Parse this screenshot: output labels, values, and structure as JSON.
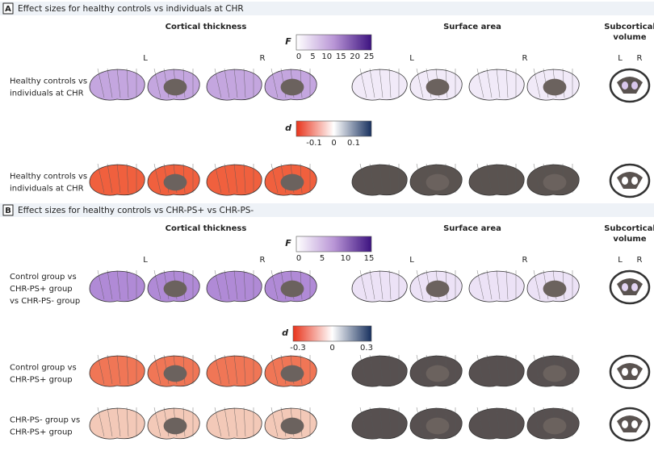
{
  "panels": [
    {
      "letter": "A",
      "title": "Effect sizes for healthy controls vs individuals at CHR",
      "cortical_header": "Cortical thickness",
      "surface_header": "Surface area",
      "subcortical_header": [
        "Subcortical",
        "volume"
      ],
      "hemispheres": {
        "cortical": [
          "L",
          "R"
        ],
        "surface": [
          "L",
          "R"
        ],
        "subcortical": [
          "L",
          "R"
        ]
      },
      "f_scale": {
        "symbol": "F",
        "ticks": [
          "0",
          "5",
          "10",
          "15",
          "20",
          "25"
        ]
      },
      "d_scale": {
        "symbol": "d",
        "ticks": [
          "-0.1",
          "0",
          "0.1"
        ]
      },
      "rows": [
        [
          "Healthy controls vs",
          "individuals at CHR"
        ],
        [
          "Healthy controls vs",
          "individuals at CHR"
        ]
      ]
    },
    {
      "letter": "B",
      "title": "Effect sizes for healthy controls vs CHR-PS+ vs CHR-PS-",
      "cortical_header": "Cortical thickness",
      "surface_header": "Surface area",
      "subcortical_header": [
        "Subcortical",
        "volume"
      ],
      "hemispheres": {
        "cortical": [
          "L",
          "R"
        ],
        "surface": [
          "L",
          "R"
        ],
        "subcortical": [
          "L",
          "R"
        ]
      },
      "f_scale": {
        "symbol": "F",
        "ticks": [
          "0",
          "5",
          "10",
          "15"
        ]
      },
      "d_scale": {
        "symbol": "d",
        "ticks": [
          "-0.3",
          "0",
          "0.3"
        ]
      },
      "rows": [
        [
          "Control group vs",
          "CHR-PS+ group",
          "vs CHR-PS- group"
        ],
        [
          "Control group vs",
          "CHR-PS+ group"
        ],
        [
          "CHR-PS- group vs",
          "CHR-PS+ group"
        ]
      ]
    }
  ]
}
